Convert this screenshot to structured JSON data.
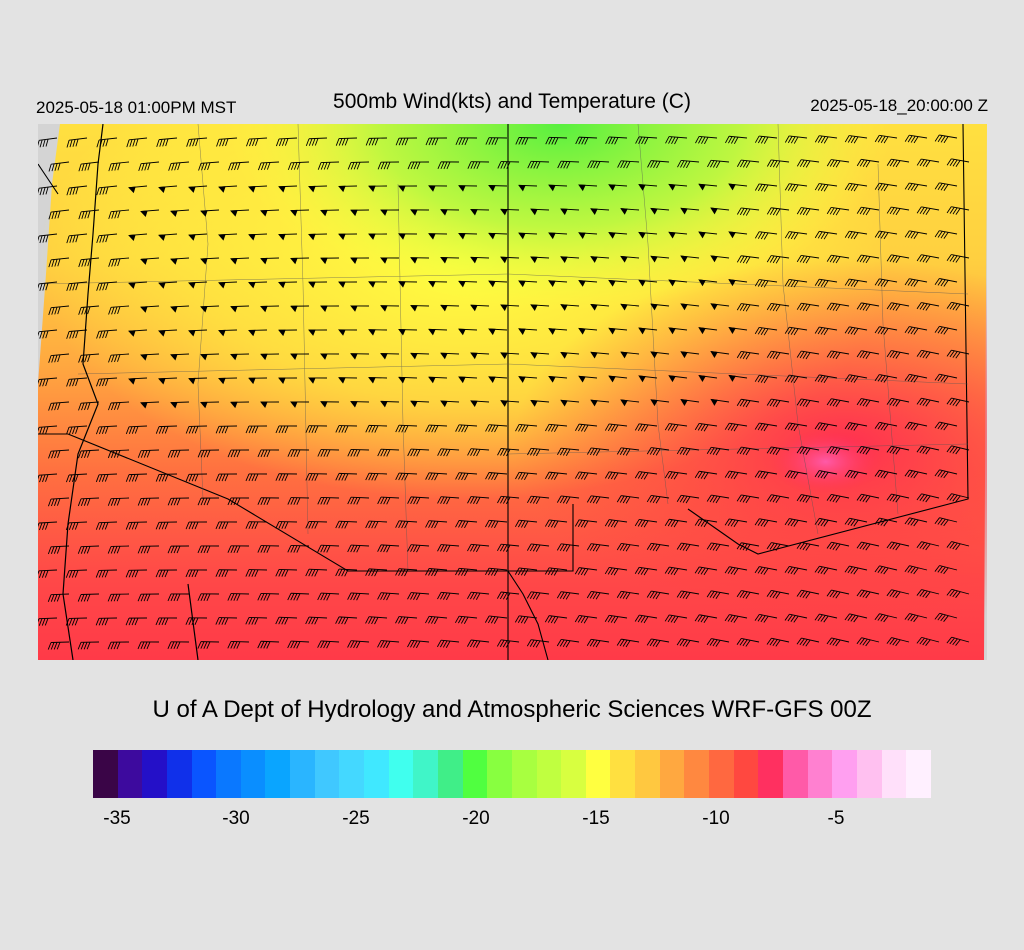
{
  "header": {
    "valid_local": "2025-05-18 01:00PM MST",
    "title": "500mb Wind(kts) and Temperature (C)",
    "valid_utc": "2025-05-18_20:00:00 Z"
  },
  "map": {
    "field": "500mb temperature (shaded) with wind barbs",
    "region": "U.S. Southwest / Four Corners",
    "wind_flow": "west-to-east, strongest across the central band"
  },
  "footer": {
    "credit": "U of A Dept of Hydrology and Atmospheric Sciences WRF-GFS 00Z"
  },
  "colorbar": {
    "colors": [
      "#3a0547",
      "#3d0a9e",
      "#2410c8",
      "#1030ea",
      "#0a55ff",
      "#0a78ff",
      "#0a8eff",
      "#0aa5ff",
      "#2ab5ff",
      "#40c8ff",
      "#44d8ff",
      "#40e8ff",
      "#40ffee",
      "#40f5c8",
      "#40ee88",
      "#50ff40",
      "#88ff40",
      "#a8ff40",
      "#c0ff40",
      "#d8ff40",
      "#ffff40",
      "#ffe040",
      "#ffc840",
      "#ffa840",
      "#ff8840",
      "#ff6840",
      "#ff4840",
      "#ff3060",
      "#ff5aa8",
      "#ff80d0",
      "#ff9ff0",
      "#ffc0f0",
      "#ffe0fa",
      "#fff0ff"
    ],
    "tick_labels": [
      "-35",
      "-30",
      "-25",
      "-20",
      "-15",
      "-10",
      "-5"
    ]
  }
}
